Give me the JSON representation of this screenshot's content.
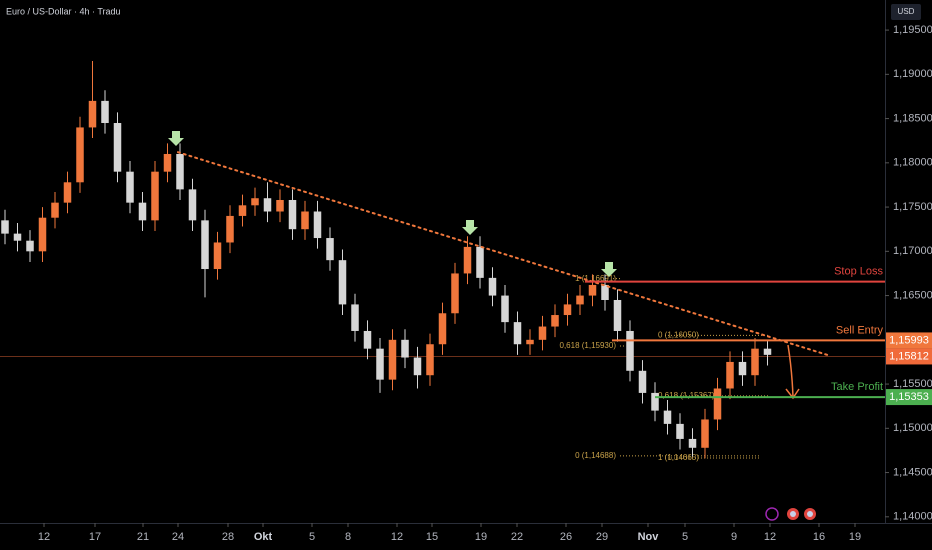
{
  "chart_data": {
    "type": "candlestick",
    "title": "Euro / US-Dollar · 4h · Tradu",
    "y_axis_label": "USD",
    "up_color": "#f0773c",
    "down_color": "#d6d6d6",
    "grid": false,
    "xlim": [
      0,
      88.5
    ],
    "xticks": [
      {
        "value": 4.4,
        "label": "12"
      },
      {
        "value": 9.5,
        "label": "17"
      },
      {
        "value": 14.3,
        "label": "21"
      },
      {
        "value": 17.8,
        "label": "24"
      },
      {
        "value": 22.8,
        "label": "28"
      },
      {
        "value": 26.3,
        "label": "Okt"
      },
      {
        "value": 31.2,
        "label": "5"
      },
      {
        "value": 34.8,
        "label": "8"
      },
      {
        "value": 39.7,
        "label": "12"
      },
      {
        "value": 43.2,
        "label": "15"
      },
      {
        "value": 48.1,
        "label": "19"
      },
      {
        "value": 51.7,
        "label": "22"
      },
      {
        "value": 56.6,
        "label": "26"
      },
      {
        "value": 60.2,
        "label": "29"
      },
      {
        "value": 64.8,
        "label": "Nov"
      },
      {
        "value": 68.5,
        "label": "5"
      },
      {
        "value": 73.4,
        "label": "9"
      },
      {
        "value": 77.0,
        "label": "12"
      },
      {
        "value": 81.9,
        "label": "16"
      },
      {
        "value": 85.5,
        "label": "19"
      }
    ],
    "ylim": [
      1.1393,
      1.1984
    ],
    "yticks": [
      {
        "value": 1.195,
        "label": "1,19500"
      },
      {
        "value": 1.19,
        "label": "1,19000"
      },
      {
        "value": 1.185,
        "label": "1,18500"
      },
      {
        "value": 1.18,
        "label": "1,18000"
      },
      {
        "value": 1.175,
        "label": "1,17500"
      },
      {
        "value": 1.17,
        "label": "1,17000"
      },
      {
        "value": 1.165,
        "label": "1,16500"
      },
      {
        "value": 1.155,
        "label": "1,15500"
      },
      {
        "value": 1.15,
        "label": "1,15000"
      },
      {
        "value": 1.145,
        "label": "1,14500"
      },
      {
        "value": 1.14,
        "label": "1,14000"
      }
    ],
    "x": [
      0.5,
      1.75,
      3,
      4.25,
      5.5,
      6.75,
      8,
      9.25,
      10.5,
      11.75,
      13,
      14.25,
      15.5,
      16.75,
      18,
      19.25,
      20.5,
      21.75,
      23,
      24.25,
      25.5,
      26.75,
      28,
      29.25,
      30.5,
      31.75,
      33,
      34.25,
      35.5,
      36.75,
      38,
      39.25,
      40.5,
      41.75,
      43,
      44.25,
      45.5,
      46.75,
      48,
      49.25,
      50.5,
      51.75,
      53,
      54.25,
      55.5,
      56.75,
      58,
      59.25,
      60.5,
      61.75,
      63,
      64.25,
      65.5,
      66.75,
      68,
      69.25,
      70.5,
      71.75,
      73,
      74.25,
      75.5,
      76.75
    ],
    "open": [
      1.1735,
      1.172,
      1.1712,
      1.17,
      1.1738,
      1.1755,
      1.1778,
      1.184,
      1.187,
      1.1845,
      1.179,
      1.1755,
      1.1735,
      1.179,
      1.181,
      1.177,
      1.1735,
      1.168,
      1.171,
      1.174,
      1.1752,
      1.176,
      1.1745,
      1.1758,
      1.1725,
      1.1745,
      1.1715,
      1.169,
      1.164,
      1.161,
      1.159,
      1.1555,
      1.16,
      1.158,
      1.156,
      1.1595,
      1.163,
      1.1675,
      1.1705,
      1.167,
      1.165,
      1.162,
      1.1595,
      1.16,
      1.1615,
      1.1628,
      1.164,
      1.165,
      1.1662,
      1.1645,
      1.161,
      1.1565,
      1.154,
      1.152,
      1.1505,
      1.1488,
      1.1478,
      1.151,
      1.1545,
      1.1575,
      1.156,
      1.159
    ],
    "high": [
      1.1747,
      1.1732,
      1.1724,
      1.175,
      1.1767,
      1.179,
      1.1852,
      1.1915,
      1.1882,
      1.1857,
      1.1802,
      1.1767,
      1.1802,
      1.1822,
      1.1822,
      1.1782,
      1.1747,
      1.1722,
      1.1752,
      1.1764,
      1.1772,
      1.1778,
      1.177,
      1.177,
      1.1757,
      1.1757,
      1.1727,
      1.1702,
      1.1652,
      1.1622,
      1.1602,
      1.1612,
      1.1612,
      1.1592,
      1.1607,
      1.1642,
      1.1687,
      1.1717,
      1.1717,
      1.1682,
      1.1662,
      1.1632,
      1.1612,
      1.1627,
      1.164,
      1.1652,
      1.1662,
      1.1674,
      1.1674,
      1.1657,
      1.1622,
      1.1577,
      1.1552,
      1.1532,
      1.1517,
      1.15,
      1.1522,
      1.1557,
      1.1587,
      1.1587,
      1.1602,
      1.16
    ],
    "low": [
      1.1708,
      1.17,
      1.1688,
      1.1688,
      1.1726,
      1.1743,
      1.1766,
      1.1828,
      1.1833,
      1.1778,
      1.1743,
      1.1723,
      1.1723,
      1.1778,
      1.1758,
      1.1723,
      1.1648,
      1.1668,
      1.1698,
      1.1728,
      1.174,
      1.1733,
      1.1733,
      1.1713,
      1.1713,
      1.1703,
      1.1678,
      1.1628,
      1.1598,
      1.1578,
      1.154,
      1.1543,
      1.1568,
      1.1545,
      1.1548,
      1.1583,
      1.1618,
      1.1663,
      1.1658,
      1.1638,
      1.1608,
      1.1583,
      1.1583,
      1.1588,
      1.1603,
      1.1616,
      1.1628,
      1.1638,
      1.1633,
      1.1598,
      1.1553,
      1.1528,
      1.1508,
      1.1493,
      1.1476,
      1.1468,
      1.1466,
      1.1498,
      1.1533,
      1.1548,
      1.1548,
      1.1571
    ],
    "close": [
      1.172,
      1.1712,
      1.17,
      1.1738,
      1.1755,
      1.1778,
      1.184,
      1.187,
      1.1845,
      1.179,
      1.1755,
      1.1735,
      1.179,
      1.181,
      1.177,
      1.1735,
      1.168,
      1.171,
      1.174,
      1.1752,
      1.176,
      1.1745,
      1.1758,
      1.1725,
      1.1745,
      1.1715,
      1.169,
      1.164,
      1.161,
      1.159,
      1.1555,
      1.16,
      1.158,
      1.156,
      1.1595,
      1.163,
      1.1675,
      1.1705,
      1.167,
      1.165,
      1.162,
      1.1595,
      1.16,
      1.1615,
      1.1628,
      1.164,
      1.165,
      1.1662,
      1.1645,
      1.161,
      1.1565,
      1.154,
      1.152,
      1.1505,
      1.1488,
      1.1478,
      1.151,
      1.1545,
      1.1575,
      1.156,
      1.159,
      1.1583
    ],
    "trendline": {
      "x": [
        17.8,
        83
      ],
      "y": [
        1.1812,
        1.1582
      ],
      "color": "#f0773c"
    },
    "levels": [
      {
        "name": "Stop Loss",
        "value": 1.16657,
        "color": "#e0443e"
      },
      {
        "name": "Sell Entry",
        "value": 1.15993,
        "label": "1,15993",
        "color": "#f0773c"
      },
      {
        "name": "Take Profit",
        "value": 1.15353,
        "label": "1,15353",
        "color": "#4caf50"
      }
    ],
    "current_price": {
      "value": 1.15812,
      "label": "1,15812",
      "color": "#f06a3a"
    },
    "fib_levels": [
      {
        "text": "1 (1,16691)",
        "value": 1.16691
      },
      {
        "text": "0,618 (1,15930)",
        "value": 1.1593
      },
      {
        "text": "0 (1,14688)",
        "value": 1.14688
      },
      {
        "text": "0 (1,16050)",
        "value": 1.1605
      },
      {
        "text": "0,618 (1,15367)",
        "value": 1.15367
      },
      {
        "text": "1 (1,14665)",
        "value": 1.14665
      }
    ]
  }
}
